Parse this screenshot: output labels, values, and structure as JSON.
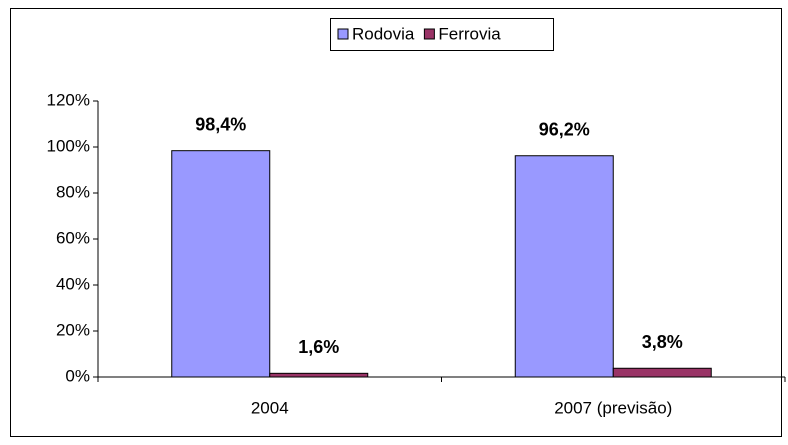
{
  "chart_data": {
    "type": "bar",
    "categories": [
      "2004",
      "2007 (previsão)"
    ],
    "series": [
      {
        "name": "Rodovia",
        "color": "#9999ff",
        "values": [
          98.4,
          96.2
        ],
        "value_labels": [
          "98,4%",
          "96,2%"
        ]
      },
      {
        "name": "Ferrovia",
        "color": "#993366",
        "values": [
          1.6,
          3.8
        ],
        "value_labels": [
          "1,6%",
          "3,8%"
        ]
      }
    ],
    "ylim": [
      0,
      120
    ],
    "yticks": [
      {
        "value": 0,
        "label": "0%"
      },
      {
        "value": 20,
        "label": "20%"
      },
      {
        "value": 40,
        "label": "40%"
      },
      {
        "value": 60,
        "label": "60%"
      },
      {
        "value": 80,
        "label": "80%"
      },
      {
        "value": 100,
        "label": "100%"
      },
      {
        "value": 120,
        "label": "120%"
      }
    ],
    "legend": "top",
    "grid": false
  }
}
